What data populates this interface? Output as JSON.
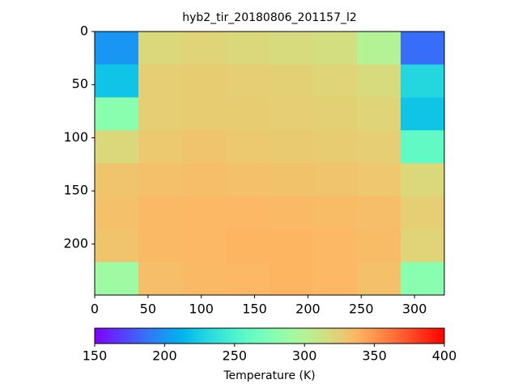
{
  "chart_data": {
    "type": "heatmap",
    "title": "hyb2_tir_20180806_201157_l2",
    "values": [
      [
        200,
        320,
        322,
        320,
        318,
        316,
        300,
        185
      ],
      [
        220,
        325,
        326,
        325,
        324,
        322,
        318,
        230
      ],
      [
        280,
        325,
        326,
        326,
        325,
        324,
        322,
        220
      ],
      [
        320,
        328,
        330,
        328,
        327,
        326,
        325,
        260
      ],
      [
        330,
        332,
        333,
        332,
        331,
        330,
        329,
        320
      ],
      [
        332,
        335,
        336,
        336,
        335,
        334,
        333,
        325
      ],
      [
        330,
        335,
        336,
        337,
        337,
        336,
        334,
        322
      ],
      [
        290,
        333,
        335,
        336,
        337,
        336,
        332,
        280
      ]
    ],
    "xlim": [
      0,
      328
    ],
    "xticks": [
      0,
      50,
      100,
      150,
      200,
      250,
      300
    ],
    "ylim": [
      248,
      0
    ],
    "yticks": [
      0,
      50,
      100,
      150,
      200
    ],
    "colormap": "rainbow",
    "colorbar": {
      "label": "Temperature (K)",
      "lim": [
        150,
        400
      ],
      "ticks": [
        150,
        200,
        250,
        300,
        350,
        400
      ]
    }
  }
}
